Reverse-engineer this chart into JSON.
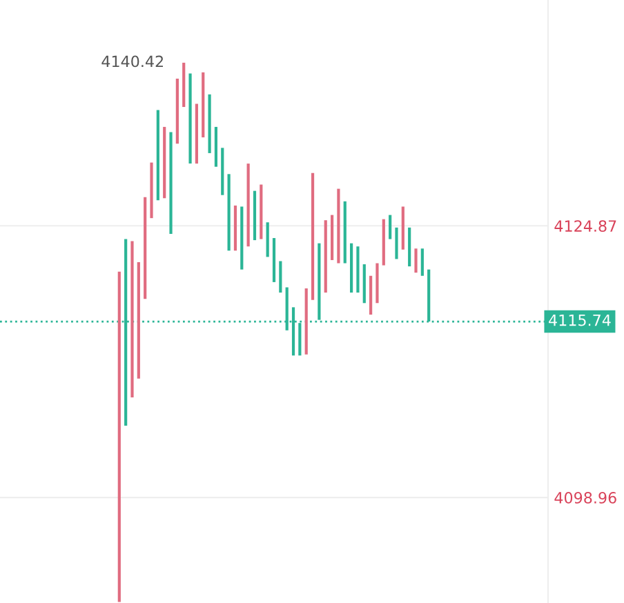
{
  "chart_data": {
    "type": "candlestick",
    "categories": [
      null,
      null,
      null,
      null,
      null,
      null,
      null,
      null,
      null,
      null,
      null,
      null,
      null,
      null,
      null,
      null,
      null,
      null,
      null,
      null,
      null,
      null,
      null,
      null,
      null,
      null,
      null,
      null,
      null,
      null,
      null,
      null,
      null,
      null,
      null,
      null,
      null,
      null,
      null,
      null,
      null,
      null,
      null,
      null,
      null,
      null,
      null,
      null,
      null,
      null,
      null,
      null,
      null,
      null,
      null,
      null,
      null,
      null,
      null,
      null,
      null,
      null,
      null,
      null,
      null,
      null,
      null,
      null,
      null,
      null,
      null,
      null,
      null,
      null,
      null,
      null,
      null,
      null,
      null,
      null,
      null,
      null,
      null,
      null,
      null
    ],
    "ohlc": [
      null,
      null,
      null,
      null,
      null,
      null,
      null,
      null,
      null,
      null,
      null,
      null,
      null,
      null,
      null,
      null,
      null,
      null,
      [
        4089.0,
        4120.5,
        4089.0,
        4120.5
      ],
      [
        4123.6,
        4123.6,
        4105.8,
        4105.8
      ],
      [
        4108.5,
        4123.4,
        4108.5,
        4123.4
      ],
      [
        4110.3,
        4121.4,
        4110.3,
        4121.4
      ],
      [
        4117.9,
        4127.6,
        4117.9,
        4127.6
      ],
      [
        4125.6,
        4130.9,
        4125.6,
        4130.9
      ],
      [
        4135.9,
        4135.9,
        4127.3,
        4127.3
      ],
      [
        4127.5,
        4134.3,
        4127.5,
        4134.3
      ],
      [
        4133.8,
        4133.8,
        4124.1,
        4124.1
      ],
      [
        4132.7,
        4138.9,
        4132.7,
        4138.9
      ],
      [
        4136.2,
        4140.42,
        4136.2,
        4140.42
      ],
      [
        4139.4,
        4139.4,
        4130.8,
        4130.8
      ],
      [
        4130.8,
        4136.5,
        4130.8,
        4136.5
      ],
      [
        4133.3,
        4139.5,
        4133.3,
        4139.5
      ],
      [
        4137.4,
        4137.4,
        4131.8,
        4131.8
      ],
      [
        4134.3,
        4134.3,
        4130.5,
        4130.5
      ],
      [
        4132.3,
        4132.3,
        4127.8,
        4127.8
      ],
      [
        4129.8,
        4129.8,
        4122.5,
        4122.5
      ],
      [
        4122.5,
        4126.8,
        4122.5,
        4126.8
      ],
      [
        4126.7,
        4126.7,
        4120.7,
        4120.7
      ],
      [
        4122.9,
        4130.8,
        4122.9,
        4130.8
      ],
      [
        4128.2,
        4128.2,
        4123.5,
        4123.5
      ],
      [
        4123.6,
        4128.8,
        4123.6,
        4128.8
      ],
      [
        4125.2,
        4125.2,
        4121.9,
        4121.9
      ],
      [
        4123.7,
        4123.7,
        4119.5,
        4119.5
      ],
      [
        4121.5,
        4121.5,
        4118.5,
        4118.5
      ],
      [
        4119.0,
        4119.0,
        4114.9,
        4114.9
      ],
      [
        4117.1,
        4117.1,
        4112.5,
        4112.5
      ],
      [
        4115.6,
        4115.6,
        4112.5,
        4112.5
      ],
      [
        4112.6,
        4118.9,
        4112.6,
        4118.9
      ],
      [
        4117.8,
        4129.9,
        4117.8,
        4129.9
      ],
      [
        4123.2,
        4123.2,
        4115.9,
        4115.9
      ],
      [
        4118.5,
        4125.4,
        4118.5,
        4125.4
      ],
      [
        4121.6,
        4125.9,
        4121.6,
        4125.9
      ],
      [
        4121.3,
        4128.4,
        4121.3,
        4128.4
      ],
      [
        4127.2,
        4127.2,
        4121.3,
        4121.3
      ],
      [
        4123.2,
        4123.2,
        4118.5,
        4118.5
      ],
      [
        4122.9,
        4122.9,
        4118.5,
        4118.5
      ],
      [
        4121.2,
        4121.2,
        4117.5,
        4117.5
      ],
      [
        4116.4,
        4120.1,
        4116.4,
        4120.1
      ],
      [
        4117.5,
        4121.3,
        4117.5,
        4121.3
      ],
      [
        4121.1,
        4125.5,
        4121.1,
        4125.5
      ],
      [
        4125.9,
        4125.9,
        4123.6,
        4123.6
      ],
      [
        4124.7,
        4124.7,
        4121.7,
        4121.7
      ],
      [
        4122.6,
        4126.7,
        4122.6,
        4126.7
      ],
      [
        4124.7,
        4124.7,
        4121.0,
        4121.0
      ],
      [
        4120.4,
        4122.7,
        4120.4,
        4122.7
      ],
      [
        4122.7,
        4122.7,
        4120.1,
        4120.1
      ],
      [
        4120.7,
        4120.7,
        4115.74,
        4115.74
      ],
      null,
      null,
      null,
      null,
      null,
      null,
      null,
      null,
      null,
      null,
      null,
      null,
      null,
      null,
      null,
      null,
      null,
      null
    ],
    "colors": [
      null,
      null,
      null,
      null,
      null,
      null,
      null,
      null,
      null,
      null,
      null,
      null,
      null,
      null,
      null,
      null,
      null,
      null,
      "#e06c80",
      "#2bb596",
      "#e06c80",
      "#e06c80",
      "#e06c80",
      "#e06c80",
      "#2bb596",
      "#e06c80",
      "#2bb596",
      "#e06c80",
      "#e06c80",
      "#2bb596",
      "#e06c80",
      "#e06c80",
      "#2bb596",
      "#2bb596",
      "#2bb596",
      "#2bb596",
      "#e06c80",
      "#2bb596",
      "#e06c80",
      "#2bb596",
      "#e06c80",
      "#2bb596",
      "#2bb596",
      "#2bb596",
      "#2bb596",
      "#2bb596",
      "#2bb596",
      "#e06c80",
      "#e06c80",
      "#2bb596",
      "#e06c80",
      "#e06c80",
      "#e06c80",
      "#2bb596",
      "#2bb596",
      "#2bb596",
      "#2bb596",
      "#e06c80",
      "#e06c80",
      "#e06c80",
      "#2bb596",
      "#2bb596",
      "#e06c80",
      "#2bb596",
      "#e06c80",
      "#2bb596",
      "#2bb596",
      null,
      null,
      null,
      null,
      null,
      null,
      null,
      null,
      null,
      null,
      null,
      null,
      null,
      null,
      null,
      null,
      null,
      null
    ],
    "ylim": [
      4088.9,
      4146.4
    ],
    "yticks": [
      4098.96,
      4124.87
    ],
    "tick_labels": "y",
    "grid": "y",
    "ref_lines": [
      {
        "axis": "y",
        "value": 4115.74,
        "label": "4115.74",
        "color": "#2bb596",
        "line_style": "dotted"
      }
    ],
    "annotations": [
      "4140.42"
    ]
  }
}
